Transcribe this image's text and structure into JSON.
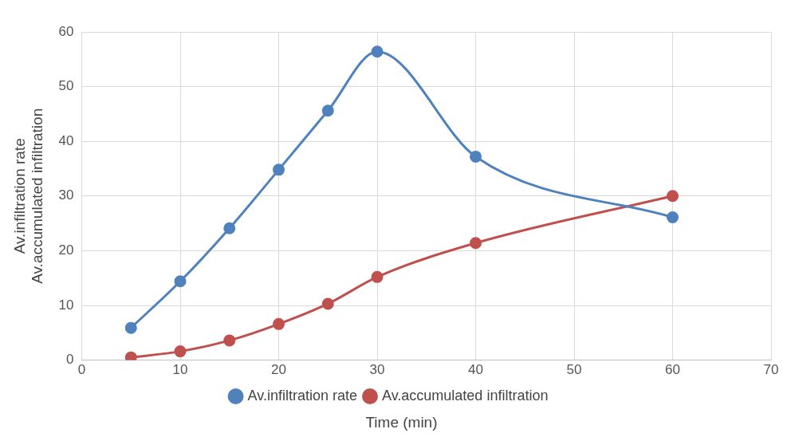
{
  "chart_data": {
    "type": "line",
    "xlabel": "Time (min)",
    "ylabel": "Av.infiltration rate\nAv.accumulated infiltration",
    "x": [
      5,
      10,
      15,
      20,
      25,
      30,
      40,
      60
    ],
    "series": [
      {
        "name": "Av.infiltration rate",
        "color": "#4f81bd",
        "values": [
          5.9,
          14.4,
          24.1,
          34.8,
          45.6,
          56.4,
          37.2,
          26.1
        ]
      },
      {
        "name": "Av.accumulated infiltration",
        "color": "#c0504d",
        "values": [
          0.5,
          1.6,
          3.6,
          6.6,
          10.3,
          15.2,
          21.4,
          30.0
        ]
      }
    ],
    "xlim": [
      0,
      70
    ],
    "xticks": [
      0,
      10,
      20,
      30,
      40,
      50,
      60,
      70
    ],
    "ylim": [
      0,
      60
    ],
    "yticks": [
      0,
      10,
      20,
      30,
      40,
      50,
      60
    ],
    "grid": true,
    "legend": "bottom",
    "marker": "circle",
    "line_style": "solid"
  }
}
